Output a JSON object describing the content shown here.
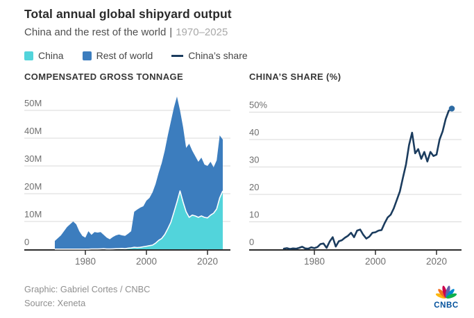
{
  "header": {
    "title": "Total annual global shipyard output",
    "subtitle": "China and the rest of the world",
    "subtitle_separator": "|",
    "subtitle_range": "1970–2025"
  },
  "legend": [
    {
      "label": "China",
      "swatch": "square",
      "color": "#52D4DB"
    },
    {
      "label": "Rest of world",
      "swatch": "square",
      "color": "#3C7DBE"
    },
    {
      "label": "China’s share",
      "swatch": "line",
      "color": "#1B3C5E"
    }
  ],
  "footer": {
    "credit": "Graphic: Gabriel Cortes / CNBC",
    "source": "Source: Xeneta",
    "logo_text": "CNBC"
  },
  "colors": {
    "china_area": "#52D4DB",
    "rest_of_world_area": "#3C7DBE",
    "china_area_border": "#FFFFFF",
    "share_line": "#1B3C5E",
    "share_end_dot": "#2E6BA3",
    "gridline": "#D9D9D9",
    "axis": "#2B2B2B",
    "axis_label": "#6F6F6F"
  },
  "chart_data": [
    {
      "type": "area",
      "stacked": true,
      "title": "COMPENSATED GROSS TONNAGE",
      "unit": "million compensated gross tons",
      "xlim": [
        1970,
        2025
      ],
      "ylim": [
        0,
        55
      ],
      "grid": true,
      "x": [
        1970,
        1971,
        1972,
        1973,
        1974,
        1975,
        1976,
        1977,
        1978,
        1979,
        1980,
        1981,
        1982,
        1983,
        1984,
        1985,
        1986,
        1987,
        1988,
        1989,
        1990,
        1991,
        1992,
        1993,
        1994,
        1995,
        1996,
        1997,
        1998,
        1999,
        2000,
        2001,
        2002,
        2003,
        2004,
        2005,
        2006,
        2007,
        2008,
        2009,
        2010,
        2011,
        2012,
        2013,
        2014,
        2015,
        2016,
        2017,
        2018,
        2019,
        2020,
        2021,
        2022,
        2023,
        2024,
        2025
      ],
      "series": [
        {
          "name": "China",
          "values": [
            0.05,
            0.05,
            0.05,
            0.05,
            0.05,
            0.05,
            0.05,
            0.05,
            0.05,
            0.05,
            0.05,
            0.05,
            0.1,
            0.1,
            0.1,
            0.15,
            0.2,
            0.1,
            0.1,
            0.15,
            0.2,
            0.25,
            0.3,
            0.2,
            0.4,
            0.5,
            0.7,
            0.6,
            0.7,
            0.9,
            1.1,
            1.3,
            1.5,
            2.2,
            3.2,
            3.9,
            5.3,
            7.4,
            9.7,
            13.3,
            17,
            21,
            17,
            13.5,
            11.5,
            12.3,
            12,
            11.5,
            12,
            11.5,
            11.3,
            12.3,
            13,
            14.5,
            18.5,
            21
          ]
        },
        {
          "name": "Rest of world",
          "values": [
            2.95,
            3.95,
            4.95,
            6.45,
            7.95,
            8.95,
            9.95,
            8.95,
            6.45,
            4.75,
            4.15,
            6.45,
            5.1,
            6.1,
            5.9,
            6.05,
            5,
            4.1,
            3.5,
            4.25,
            4.8,
            5.05,
            4.7,
            4.6,
            5.2,
            6,
            12.8,
            13.7,
            14.3,
            14.6,
            16.4,
            17.2,
            19,
            21.3,
            24.3,
            27.1,
            30.2,
            33.6,
            36.3,
            37.7,
            38,
            29,
            27,
            23,
            26.5,
            23.2,
            21.5,
            20,
            21,
            19,
            18.7,
            19.2,
            16.5,
            17.5,
            22.5,
            18.5
          ]
        }
      ],
      "y_ticks": [
        {
          "v": 50,
          "label": "50M"
        },
        {
          "v": 40,
          "label": "40M"
        },
        {
          "v": 30,
          "label": "30M"
        },
        {
          "v": 20,
          "label": "20M"
        },
        {
          "v": 10,
          "label": "10M"
        },
        {
          "v": 0,
          "label": "0"
        }
      ],
      "x_ticks": [
        {
          "v": 1980,
          "label": "1980"
        },
        {
          "v": 2000,
          "label": "2000"
        },
        {
          "v": 2020,
          "label": "2020"
        }
      ]
    },
    {
      "type": "line",
      "title": "CHINA’S SHARE (%)",
      "unit": "percent",
      "xlim": [
        1970,
        2025
      ],
      "ylim": [
        0,
        52
      ],
      "grid": true,
      "end_dot": true,
      "x": [
        1970,
        1971,
        1972,
        1973,
        1974,
        1975,
        1976,
        1977,
        1978,
        1979,
        1980,
        1981,
        1982,
        1983,
        1984,
        1985,
        1986,
        1987,
        1988,
        1989,
        1990,
        1991,
        1992,
        1993,
        1994,
        1995,
        1996,
        1997,
        1998,
        1999,
        2000,
        2001,
        2002,
        2003,
        2004,
        2005,
        2006,
        2007,
        2008,
        2009,
        2010,
        2011,
        2012,
        2013,
        2014,
        2015,
        2016,
        2017,
        2018,
        2019,
        2020,
        2021,
        2022,
        2023,
        2024,
        2025
      ],
      "series": [
        {
          "name": "China’s share",
          "values": [
            0.2,
            0.4,
            0.1,
            0.3,
            0.2,
            0.5,
            0.9,
            0.3,
            0.2,
            0.7,
            0.4,
            0.8,
            1.9,
            2.1,
            0.5,
            2.8,
            4.4,
            1,
            2.9,
            3.3,
            4.2,
            4.9,
            6,
            4.4,
            6.8,
            7.2,
            5.3,
            3.9,
            4.6,
            6,
            6.2,
            6.8,
            7,
            9.5,
            11.6,
            12.6,
            14.9,
            18,
            21.1,
            26.1,
            30.9,
            38,
            42.5,
            35,
            36.5,
            33,
            35.5,
            32,
            35.5,
            34,
            34.5,
            40,
            43,
            47.5,
            50.5,
            51.3
          ]
        }
      ],
      "y_ticks": [
        {
          "v": 50,
          "label": "50%"
        },
        {
          "v": 40,
          "label": "40"
        },
        {
          "v": 30,
          "label": "30"
        },
        {
          "v": 20,
          "label": "20"
        },
        {
          "v": 10,
          "label": "10"
        },
        {
          "v": 0,
          "label": "0"
        }
      ],
      "x_ticks": [
        {
          "v": 1980,
          "label": "1980"
        },
        {
          "v": 2000,
          "label": "2000"
        },
        {
          "v": 2020,
          "label": "2020"
        }
      ]
    }
  ]
}
